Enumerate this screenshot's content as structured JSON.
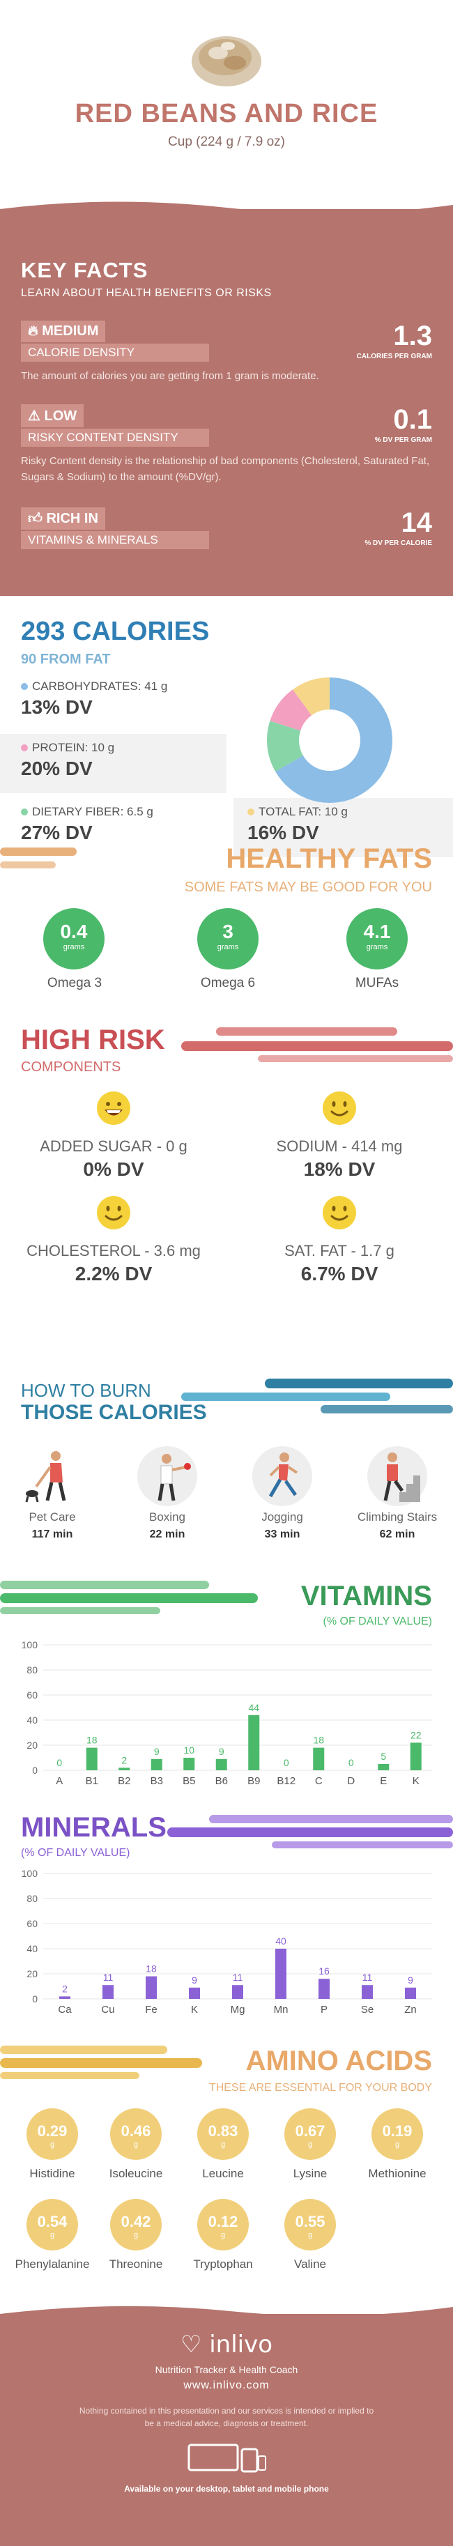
{
  "header": {
    "title": "RED BEANS AND RICE",
    "serving": "Cup (224 g / 7.9 oz)"
  },
  "key_facts": {
    "title": "KEY FACTS",
    "subtitle": "LEARN ABOUT HEALTH BENEFITS OR RISKS",
    "calorie_density": {
      "level": "MEDIUM",
      "label": "CALORIE DENSITY",
      "value": "1.3",
      "unit": "CALORIES PER GRAM",
      "description": "The amount of calories you are getting from 1 gram is moderate."
    },
    "risky_content": {
      "level": "LOW",
      "label": "RISKY CONTENT DENSITY",
      "value": "0.1",
      "unit": "% DV PER GRAM",
      "description": "Risky Content density is the relationship of bad components (Cholesterol, Saturated Fat, Sugars & Sodium) to the amount (%DV/gr)."
    },
    "rich_in": {
      "level": "RICH IN",
      "label": "VITAMINS & MINERALS",
      "value": "14",
      "unit": "% DV PER CALORIE"
    }
  },
  "calories": {
    "title": "293 CALORIES",
    "subtitle": "90 FROM FAT",
    "carbs": {
      "label": "CARBOHYDRATES: 41 g",
      "dv": "13% DV",
      "color": "#8bbde6"
    },
    "protein": {
      "label": "PROTEIN: 10 g",
      "dv": "20% DV",
      "color": "#f3a0c0"
    },
    "fiber": {
      "label": "DIETARY FIBER: 6.5 g",
      "dv": "27% DV",
      "color": "#88d5a8"
    },
    "fat": {
      "label": "TOTAL FAT: 10 g",
      "dv": "16% DV",
      "color": "#f6d78a"
    }
  },
  "healthy_fats": {
    "title": "HEALTHY FATS",
    "subtitle": "SOME FATS MAY BE GOOD FOR YOU",
    "items": [
      {
        "value": "0.4",
        "unit": "grams",
        "name": "Omega 3"
      },
      {
        "value": "3",
        "unit": "grams",
        "name": "Omega 6"
      },
      {
        "value": "4.1",
        "unit": "grams",
        "name": "MUFAs"
      }
    ]
  },
  "high_risk": {
    "title": "HIGH RISK",
    "subtitle": "COMPONENTS",
    "items": [
      {
        "label": "ADDED SUGAR - 0 g",
        "dv": "0% DV"
      },
      {
        "label": "SODIUM - 414 mg",
        "dv": "18% DV"
      },
      {
        "label": "CHOLESTEROL - 3.6 mg",
        "dv": "2.2% DV"
      },
      {
        "label": "SAT. FAT - 1.7 g",
        "dv": "6.7% DV"
      }
    ]
  },
  "burn": {
    "title_1": "HOW TO BURN",
    "title_2": "THOSE CALORIES",
    "items": [
      {
        "activity": "Pet Care",
        "minutes": "117 min"
      },
      {
        "activity": "Boxing",
        "minutes": "22 min"
      },
      {
        "activity": "Jogging",
        "minutes": "33 min"
      },
      {
        "activity": "Climbing Stairs",
        "minutes": "62 min"
      }
    ]
  },
  "vitamins": {
    "title": "VITAMINS",
    "subtitle": "(% OF DAILY VALUE)"
  },
  "minerals": {
    "title": "MINERALS",
    "subtitle": "(% OF DAILY VALUE)"
  },
  "chart_data": [
    {
      "type": "bar",
      "title": "VITAMINS",
      "subtitle": "(% OF DAILY VALUE)",
      "categories": [
        "A",
        "B1",
        "B2",
        "B3",
        "B5",
        "B6",
        "B9",
        "B12",
        "C",
        "D",
        "E",
        "K"
      ],
      "values": [
        0,
        18,
        2,
        9,
        10,
        9,
        44,
        0,
        18,
        0,
        5,
        22
      ],
      "ylim": [
        0,
        100
      ],
      "yticks": [
        0,
        20,
        40,
        60,
        80,
        100
      ],
      "color": "#4bb96a"
    },
    {
      "type": "bar",
      "title": "MINERALS",
      "subtitle": "(% OF DAILY VALUE)",
      "categories": [
        "Ca",
        "Cu",
        "Fe",
        "K",
        "Mg",
        "Mn",
        "P",
        "Se",
        "Zn"
      ],
      "values": [
        2,
        11,
        18,
        9,
        11,
        40,
        16,
        11,
        9
      ],
      "ylim": [
        0,
        100
      ],
      "yticks": [
        0,
        20,
        40,
        60,
        80,
        100
      ],
      "color": "#8b62d6"
    }
  ],
  "amino": {
    "title": "AMINO ACIDS",
    "subtitle": "THESE ARE ESSENTIAL FOR YOUR BODY",
    "unit": "g",
    "items": [
      {
        "value": "0.29",
        "name": "Histidine"
      },
      {
        "value": "0.46",
        "name": "Isoleucine"
      },
      {
        "value": "0.83",
        "name": "Leucine"
      },
      {
        "value": "0.67",
        "name": "Lysine"
      },
      {
        "value": "0.19",
        "name": "Methionine"
      },
      {
        "value": "0.54",
        "name": "Phenylalanine"
      },
      {
        "value": "0.42",
        "name": "Threonine"
      },
      {
        "value": "0.12",
        "name": "Tryptophan"
      },
      {
        "value": "0.55",
        "name": "Valine"
      }
    ]
  },
  "footer": {
    "brand": "inlivo",
    "tagline": "Nutrition Tracker & Health Coach",
    "url": "www.inlivo.com",
    "disclaimer": "Nothing contained in this presentation and our services is intended or implied to be a medical advice, diagnosis or treatment.",
    "available": "Available on your desktop, tablet and mobile phone"
  }
}
